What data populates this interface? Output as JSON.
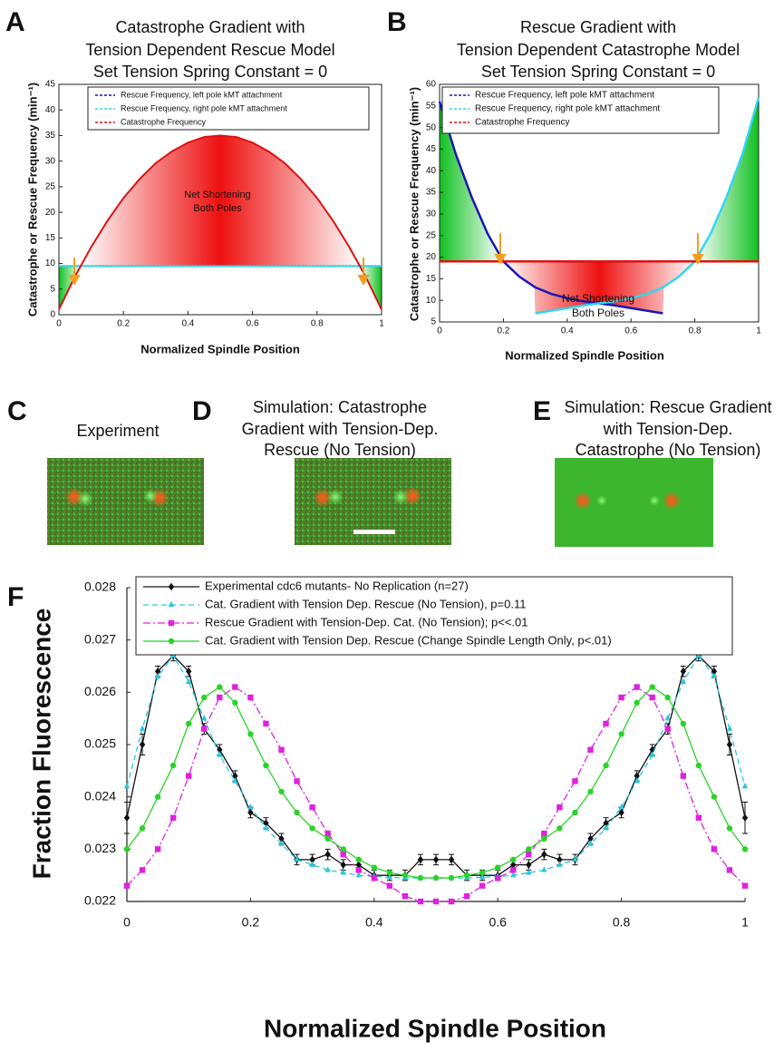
{
  "chart_data": [
    {
      "type": "line",
      "panel": "A",
      "title": [
        "Catastrophe Gradient with",
        "Tension Dependent Rescue Model",
        "Set Tension Spring Constant = 0"
      ],
      "xlabel": "Normalized Spindle Position",
      "ylabel": "Catastrophe or Rescue Frequency (min⁻¹)",
      "xlim": [
        0,
        1
      ],
      "ylim": [
        0,
        45
      ],
      "xticks": [
        0,
        0.2,
        0.4,
        0.6,
        0.8,
        1
      ],
      "yticks": [
        0,
        5,
        10,
        15,
        20,
        25,
        30,
        35,
        40,
        45
      ],
      "legend": "upper center",
      "box": true,
      "annotation": [
        "Net Shortening",
        "Both Poles"
      ],
      "series": [
        {
          "name": "Rescue Frequency, left pole kMT attachment",
          "color": "#1010c8",
          "style": "dotted",
          "x": [
            0,
            1
          ],
          "values": [
            9.5,
            9.5
          ]
        },
        {
          "name": "Rescue Frequency, right pole kMT attachment",
          "color": "#33d6ee",
          "style": "solid",
          "x": [
            0,
            1
          ],
          "values": [
            9.5,
            9.5
          ]
        },
        {
          "name": "Catastrophe Frequency",
          "color": "#e01010",
          "style": "solid",
          "x": [
            0,
            0.05,
            0.1,
            0.15,
            0.2,
            0.25,
            0.3,
            0.35,
            0.4,
            0.45,
            0.5,
            0.55,
            0.6,
            0.65,
            0.7,
            0.75,
            0.8,
            0.85,
            0.9,
            0.95,
            1
          ],
          "values": [
            1,
            7.5,
            13.2,
            18.3,
            22.8,
            26.5,
            29.6,
            31.9,
            33.6,
            34.7,
            35,
            34.7,
            33.6,
            31.9,
            29.6,
            26.5,
            22.8,
            18.3,
            13.2,
            7.5,
            1
          ]
        }
      ]
    },
    {
      "type": "line",
      "panel": "B",
      "title": [
        "Rescue Gradient with",
        "Tension Dependent Catastrophe Model",
        "Set Tension Spring Constant = 0"
      ],
      "xlabel": "Normalized Spindle Position",
      "ylabel": "Catastrophe or Rescue Frequency (min⁻¹)",
      "xlim": [
        0,
        1
      ],
      "ylim": [
        5,
        60
      ],
      "xticks": [
        0,
        0.2,
        0.4,
        0.6,
        0.8,
        1
      ],
      "yticks": [
        5,
        10,
        15,
        20,
        25,
        30,
        35,
        40,
        45,
        50,
        55,
        60
      ],
      "legend": "upper center",
      "box": true,
      "annotation": [
        "Net Shortening",
        "Both Poles"
      ],
      "series": [
        {
          "name": "Rescue Frequency, left pole kMT attachment",
          "color": "#1818b8",
          "style": "solid",
          "x": [
            0,
            0.05,
            0.1,
            0.15,
            0.2,
            0.25,
            0.3,
            0.35,
            0.4,
            0.45,
            0.5,
            0.55,
            0.6,
            0.65,
            0.7
          ],
          "values": [
            56,
            44,
            34,
            25.5,
            19,
            15.5,
            13,
            11.5,
            10.5,
            9.8,
            9.3,
            8.8,
            8.2,
            7.6,
            7
          ]
        },
        {
          "name": "Rescue Frequency, right pole kMT attachment",
          "color": "#33d6ee",
          "style": "solid",
          "x": [
            0.3,
            0.35,
            0.4,
            0.45,
            0.5,
            0.55,
            0.6,
            0.65,
            0.7,
            0.75,
            0.8,
            0.85,
            0.9,
            0.95,
            1
          ],
          "values": [
            7,
            7.6,
            8.2,
            8.8,
            9.3,
            9.8,
            10.5,
            11.5,
            13,
            15.5,
            19,
            25.5,
            34,
            44,
            57
          ]
        },
        {
          "name": "Catastrophe Frequency",
          "color": "#e01010",
          "style": "solid",
          "x": [
            0,
            1
          ],
          "values": [
            19,
            19
          ]
        }
      ]
    },
    {
      "type": "line",
      "panel": "F",
      "xlabel": "Normalized Spindle Position",
      "ylabel": "Fraction Fluorescence",
      "xlim": [
        0,
        1
      ],
      "ylim": [
        0.022,
        0.028
      ],
      "xticks": [
        0,
        0.2,
        0.4,
        0.6,
        0.8,
        1
      ],
      "yticks": [
        0.022,
        0.023,
        0.024,
        0.025,
        0.026,
        0.027,
        0.028
      ],
      "legend": "upper center",
      "box": false,
      "x": [
        0,
        0.025,
        0.05,
        0.075,
        0.1,
        0.125,
        0.15,
        0.175,
        0.2,
        0.225,
        0.25,
        0.275,
        0.3,
        0.325,
        0.35,
        0.375,
        0.4,
        0.425,
        0.45,
        0.475,
        0.5,
        0.525,
        0.55,
        0.575,
        0.6,
        0.625,
        0.65,
        0.675,
        0.7,
        0.725,
        0.75,
        0.775,
        0.8,
        0.825,
        0.85,
        0.875,
        0.9,
        0.925,
        0.95,
        0.975,
        1
      ],
      "series": [
        {
          "name": "Experimental cdc6 mutants- No Replication (n=27)",
          "color": "#111111",
          "style": "solid",
          "marker": "diamond",
          "values": [
            0.0236,
            0.025,
            0.0264,
            0.0267,
            0.0264,
            0.0253,
            0.0249,
            0.0244,
            0.0237,
            0.0235,
            0.0232,
            0.0228,
            0.0228,
            0.0229,
            0.0227,
            0.0227,
            0.0225,
            0.0225,
            0.0225,
            0.0228,
            0.0228,
            0.0228,
            0.0225,
            0.0225,
            0.0225,
            0.0227,
            0.0227,
            0.0229,
            0.0228,
            0.0228,
            0.0232,
            0.0235,
            0.0237,
            0.0244,
            0.0249,
            0.0253,
            0.0264,
            0.0267,
            0.0264,
            0.025,
            0.0236
          ],
          "errors": [
            0.0003,
            0.0002,
            0.0001,
            0.0001,
            0.0001,
            0.0001,
            0.0001,
            0.0001,
            0.0001,
            0.0001,
            0.0001,
            0.0001,
            0.0001,
            0.0001,
            0.0001,
            0.0001,
            0.0001,
            0.0001,
            0.0001,
            0.0001,
            0.0001,
            0.0001,
            0.0001,
            0.0001,
            0.0001,
            0.0001,
            0.0001,
            0.0001,
            0.0001,
            0.0001,
            0.0001,
            0.0001,
            0.0001,
            0.0001,
            0.0001,
            0.0001,
            0.0001,
            0.0001,
            0.0001,
            0.0002,
            0.0003
          ]
        },
        {
          "name": "Cat. Gradient with Tension Dep. Rescue (No Tension),  p=0.11",
          "color": "#2cc6dc",
          "style": "dashed",
          "marker": "triangle",
          "values": [
            0.0242,
            0.0253,
            0.0263,
            0.0267,
            0.0262,
            0.0255,
            0.0248,
            0.0243,
            0.0238,
            0.0234,
            0.0231,
            0.0228,
            0.0227,
            0.0226,
            0.02255,
            0.0225,
            0.02248,
            0.02246,
            0.02245,
            0.02245,
            0.02245,
            0.02245,
            0.02245,
            0.02246,
            0.02248,
            0.0225,
            0.02255,
            0.0226,
            0.0227,
            0.0228,
            0.0231,
            0.0234,
            0.0238,
            0.0243,
            0.0248,
            0.0255,
            0.0262,
            0.0267,
            0.0263,
            0.0253,
            0.0242
          ]
        },
        {
          "name": "Rescue Gradient with Tension-Dep. Cat. (No Tension);  p<<.01",
          "color": "#e020e0",
          "style": "dashdot",
          "marker": "square",
          "values": [
            0.0223,
            0.0226,
            0.023,
            0.0236,
            0.0244,
            0.0253,
            0.0259,
            0.0261,
            0.0259,
            0.0254,
            0.0249,
            0.0243,
            0.0238,
            0.0233,
            0.0229,
            0.0226,
            0.02245,
            0.0223,
            0.0221,
            0.022,
            0.022,
            0.022,
            0.0221,
            0.0223,
            0.02245,
            0.0226,
            0.0229,
            0.0233,
            0.0238,
            0.0243,
            0.0249,
            0.0254,
            0.0259,
            0.0261,
            0.0259,
            0.0253,
            0.0244,
            0.0236,
            0.023,
            0.0226,
            0.0223
          ]
        },
        {
          "name": "Cat. Gradient with Tension Dep. Rescue (Change Spindle Length Only, p<.01)",
          "color": "#28d428",
          "style": "solid",
          "marker": "circle",
          "values": [
            0.023,
            0.0234,
            0.024,
            0.0246,
            0.0254,
            0.0259,
            0.0261,
            0.0258,
            0.0252,
            0.0246,
            0.0241,
            0.0237,
            0.0234,
            0.0232,
            0.023,
            0.0228,
            0.02265,
            0.02255,
            0.0225,
            0.02245,
            0.02245,
            0.02245,
            0.0225,
            0.02255,
            0.02265,
            0.0228,
            0.023,
            0.0232,
            0.0234,
            0.0237,
            0.0241,
            0.0246,
            0.0252,
            0.0258,
            0.0261,
            0.0259,
            0.0254,
            0.0246,
            0.024,
            0.0234,
            0.023
          ]
        }
      ]
    }
  ],
  "images": [
    {
      "panel": "C",
      "caption": [
        "Experiment"
      ]
    },
    {
      "panel": "D",
      "caption": [
        "Simulation:  Catastrophe",
        "Gradient with Tension-Dep.",
        "Rescue (No Tension)"
      ]
    },
    {
      "panel": "E",
      "caption": [
        "Simulation:  Rescue Gradient",
        "with Tension-Dep.",
        "Catastrophe (No Tension)"
      ]
    }
  ]
}
